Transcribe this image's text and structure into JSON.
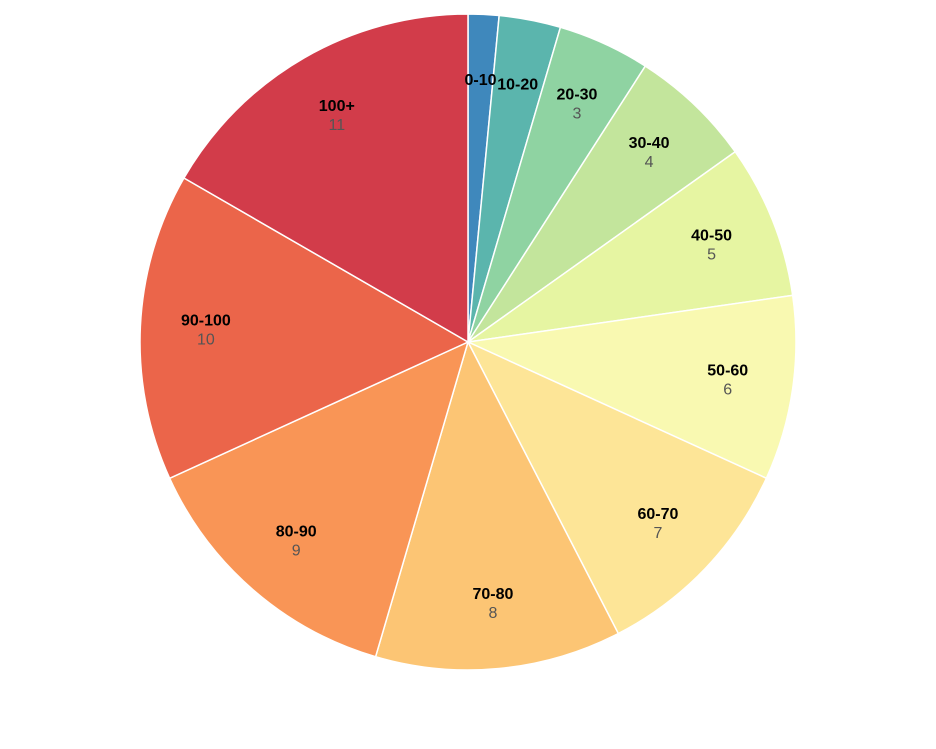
{
  "chart_data": {
    "type": "pie",
    "title": "",
    "categories": [
      "0-10",
      "10-20",
      "20-30",
      "30-40",
      "40-50",
      "50-60",
      "60-70",
      "70-80",
      "80-90",
      "90-100",
      "100+"
    ],
    "values": [
      1,
      2,
      3,
      4,
      5,
      6,
      7,
      8,
      9,
      10,
      11
    ],
    "value_labels": [
      "",
      "",
      "3",
      "4",
      "5",
      "6",
      "7",
      "8",
      "9",
      "10",
      "11"
    ],
    "colors": [
      "#3f88bc",
      "#5bb5ad",
      "#8fd3a2",
      "#c3e59c",
      "#e6f5a2",
      "#f9f9b1",
      "#fde597",
      "#fcc574",
      "#f99556",
      "#eb654a",
      "#d23c4a"
    ],
    "start_angle_deg": 0,
    "direction": "clockwise",
    "legend": "none"
  }
}
